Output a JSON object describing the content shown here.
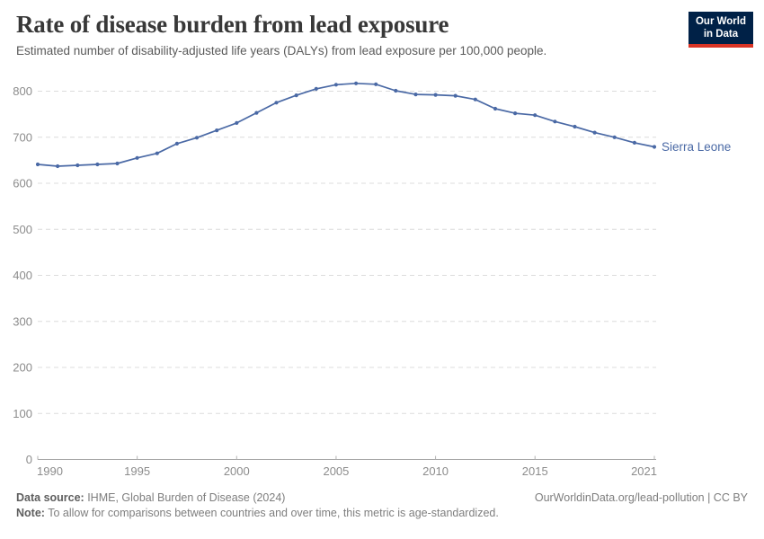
{
  "header": {
    "title": "Rate of disease burden from lead exposure",
    "subtitle": "Estimated number of disability-adjusted life years (DALYs) from lead exposure per 100,000 people.",
    "logo": {
      "line1": "Our World",
      "line2": "in Data",
      "bg_color": "#002147",
      "accent_color": "#d93425"
    }
  },
  "chart_data": {
    "type": "line",
    "title": "Rate of disease burden from lead exposure",
    "xlabel": "",
    "ylabel": "",
    "grid": "horizontal-dashed",
    "legend_position": "end-of-line-label",
    "xlim": [
      1990,
      2021
    ],
    "ylim": [
      0,
      830
    ],
    "x_ticks": [
      1990,
      1995,
      2000,
      2005,
      2010,
      2015,
      2021
    ],
    "y_ticks": [
      0,
      100,
      200,
      300,
      400,
      500,
      600,
      700,
      800
    ],
    "x": [
      1990,
      1991,
      1992,
      1993,
      1994,
      1995,
      1996,
      1997,
      1998,
      1999,
      2000,
      2001,
      2002,
      2003,
      2004,
      2005,
      2006,
      2007,
      2008,
      2009,
      2010,
      2011,
      2012,
      2013,
      2014,
      2015,
      2016,
      2017,
      2018,
      2019,
      2020,
      2021
    ],
    "series": [
      {
        "name": "Sierra Leone",
        "color": "#4a69a5",
        "values": [
          641,
          637,
          639,
          641,
          643,
          655,
          665,
          686,
          699,
          715,
          731,
          753,
          775,
          791,
          805,
          814,
          817,
          815,
          801,
          793,
          792,
          790,
          782,
          762,
          752,
          748,
          734,
          723,
          710,
          700,
          688,
          679
        ]
      }
    ],
    "colors": {
      "gridline": "#dcdcdc",
      "axis": "#a8a8a8",
      "tick": "#b3b3b3",
      "tick_label": "#8c8c8c"
    }
  },
  "footer": {
    "data_source_label": "Data source:",
    "data_source_text": " IHME, Global Burden of Disease (2024)",
    "rights": "OurWorldinData.org/lead-pollution | CC BY",
    "note_label": "Note:",
    "note_text": " To allow for comparisons between countries and over time, this metric is age-standardized."
  }
}
